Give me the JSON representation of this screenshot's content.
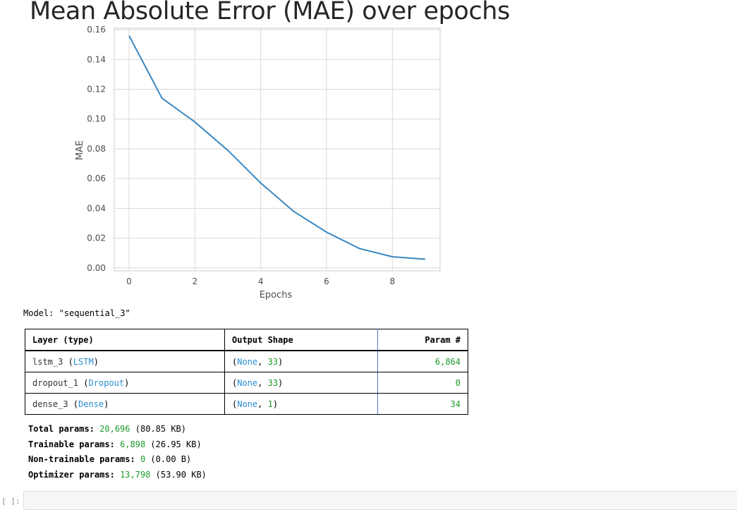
{
  "chart_data": {
    "type": "line",
    "title": "Mean Absolute Error (MAE) over epochs",
    "xlabel": "Epochs",
    "ylabel": "MAE",
    "x": [
      0,
      1,
      2,
      3,
      4,
      5,
      6,
      7,
      8,
      9
    ],
    "series": [
      {
        "values": [
          0.156,
          0.114,
          0.098,
          0.079,
          0.057,
          0.038,
          0.024,
          0.013,
          0.0075,
          0.0058
        ]
      }
    ],
    "xlim": [
      -0.45,
      9.45
    ],
    "ylim": [
      -0.002,
      0.161
    ],
    "xticks": [
      "0",
      "2",
      "4",
      "6",
      "8"
    ],
    "yticks": [
      "0.00",
      "0.02",
      "0.04",
      "0.06",
      "0.08",
      "0.10",
      "0.12",
      "0.14",
      "0.16"
    ],
    "grid": true,
    "line_color": "#3a87c0"
  },
  "model": {
    "name_label": "Model: \"sequential_3\"",
    "headers": [
      "Layer (type)",
      "Output Shape",
      "Param #"
    ],
    "rows": [
      {
        "layer_name": "lstm_3",
        "layer_type": "LSTM",
        "shape_none": "None",
        "shape_dim": "33",
        "params": "6,864"
      },
      {
        "layer_name": "dropout_1",
        "layer_type": "Dropout",
        "shape_none": "None",
        "shape_dim": "33",
        "params": "0"
      },
      {
        "layer_name": "dense_3",
        "layer_type": "Dense",
        "shape_none": "None",
        "shape_dim": "1",
        "params": "34"
      }
    ]
  },
  "summary": {
    "total_label": "Total params:",
    "total_value": "20,696",
    "total_size": "(80.85 KB)",
    "trainable_label": "Trainable params:",
    "trainable_value": "6,898",
    "trainable_size": "(26.95 KB)",
    "nontrainable_label": "Non-trainable params:",
    "nontrainable_value": "0",
    "nontrainable_size": "(0.00 B)",
    "optimizer_label": "Optimizer params:",
    "optimizer_value": "13,798",
    "optimizer_size": "(53.90 KB)"
  },
  "input_cell": {
    "prompt": "[ ]:"
  }
}
